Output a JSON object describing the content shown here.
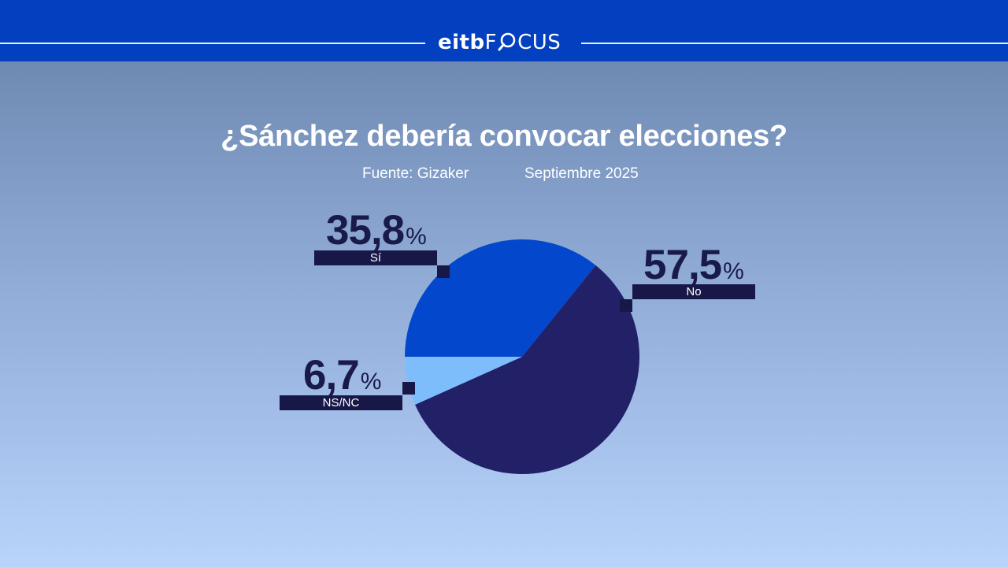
{
  "header": {
    "brand_bold": "eitb",
    "brand_light_prefix": "F",
    "brand_light_suffix": "CUS",
    "brand_icon": "magnifier-o-icon",
    "bar_color": "#0340c0"
  },
  "title": "¿Sánchez debería convocar elecciones?",
  "source": "Fuente: Gizaker",
  "date": "Septiembre 2025",
  "slices": [
    {
      "label": "Sí",
      "value_text": "35,8",
      "percent_symbol": "%",
      "color": "#0347cc"
    },
    {
      "label": "No",
      "value_text": "57,5",
      "percent_symbol": "%",
      "color": "#222066"
    },
    {
      "label": "NS/NC",
      "value_text": "6,7",
      "percent_symbol": "%",
      "color": "#7dbdfb"
    }
  ],
  "chart_data": {
    "type": "pie",
    "title": "¿Sánchez debería convocar elecciones?",
    "subtitle": "Fuente: Gizaker — Septiembre 2025",
    "categories": [
      "Sí",
      "No",
      "NS/NC"
    ],
    "values": [
      35.8,
      57.5,
      6.7
    ],
    "unit": "%",
    "colors": [
      "#0347cc",
      "#222066",
      "#7dbdfb"
    ],
    "start_angle_deg": 180,
    "direction": "clockwise",
    "legend": "callout labels"
  }
}
